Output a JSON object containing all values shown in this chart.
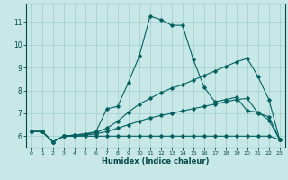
{
  "xlabel": "Humidex (Indice chaleur)",
  "bg_color": "#c8e8e8",
  "line_color": "#006060",
  "grid_color": "#a0cccc",
  "spine_color": "#004848",
  "xlim": [
    -0.5,
    23.5
  ],
  "ylim": [
    5.5,
    11.8
  ],
  "yticks": [
    6,
    7,
    8,
    9,
    10,
    11
  ],
  "xticks": [
    0,
    1,
    2,
    3,
    4,
    5,
    6,
    7,
    8,
    9,
    10,
    11,
    12,
    13,
    14,
    15,
    16,
    17,
    18,
    19,
    20,
    21,
    22,
    23
  ],
  "series": [
    {
      "x": [
        0,
        1,
        2,
        3,
        4,
        5,
        6,
        7,
        8,
        9,
        10,
        11,
        12,
        13,
        14,
        15,
        16,
        17,
        18,
        19,
        20,
        21,
        22,
        23
      ],
      "y": [
        6.2,
        6.2,
        5.75,
        6.0,
        6.0,
        6.0,
        6.0,
        6.0,
        6.0,
        6.0,
        6.0,
        6.0,
        6.0,
        6.0,
        6.0,
        6.0,
        6.0,
        6.0,
        6.0,
        6.0,
        6.0,
        6.0,
        6.0,
        5.85
      ]
    },
    {
      "x": [
        0,
        1,
        2,
        3,
        4,
        5,
        6,
        7,
        8,
        9,
        10,
        11,
        12,
        13,
        14,
        15,
        16,
        17,
        18,
        19,
        20,
        21,
        22,
        23
      ],
      "y": [
        6.2,
        6.2,
        5.75,
        6.0,
        6.0,
        6.05,
        6.1,
        6.2,
        6.35,
        6.5,
        6.65,
        6.8,
        6.9,
        7.0,
        7.1,
        7.2,
        7.3,
        7.4,
        7.5,
        7.6,
        7.65,
        7.0,
        6.85,
        5.85
      ]
    },
    {
      "x": [
        0,
        1,
        2,
        3,
        4,
        5,
        6,
        7,
        8,
        9,
        10,
        11,
        12,
        13,
        14,
        15,
        16,
        17,
        18,
        19,
        20,
        21,
        22,
        23
      ],
      "y": [
        6.2,
        6.2,
        5.75,
        6.0,
        6.05,
        6.1,
        6.2,
        7.2,
        7.3,
        8.35,
        9.5,
        11.25,
        11.1,
        10.85,
        10.85,
        9.35,
        8.15,
        7.5,
        7.6,
        7.7,
        7.1,
        7.05,
        6.7,
        5.85
      ]
    },
    {
      "x": [
        0,
        1,
        2,
        3,
        4,
        5,
        6,
        7,
        8,
        9,
        10,
        11,
        12,
        13,
        14,
        15,
        16,
        17,
        18,
        19,
        20,
        21,
        22,
        23
      ],
      "y": [
        6.2,
        6.2,
        5.75,
        6.0,
        6.05,
        6.1,
        6.15,
        6.35,
        6.65,
        7.05,
        7.4,
        7.65,
        7.9,
        8.1,
        8.25,
        8.45,
        8.65,
        8.85,
        9.05,
        9.25,
        9.4,
        8.6,
        7.6,
        5.85
      ]
    }
  ]
}
